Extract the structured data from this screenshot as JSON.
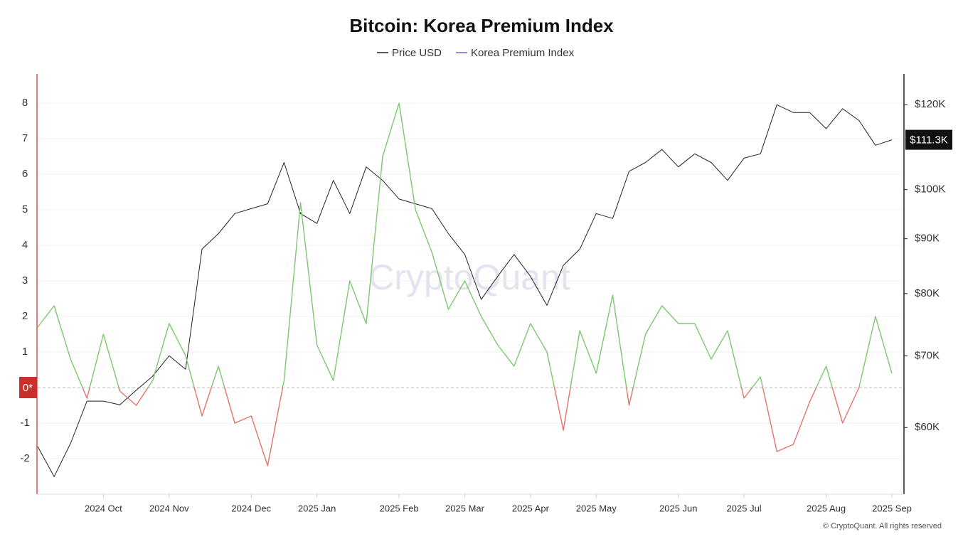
{
  "chart_data": {
    "type": "line",
    "title": "Bitcoin: Korea Premium Index",
    "watermark": "CryptoQuant",
    "footer": "© CryptoQuant. All rights reserved",
    "categories": [
      null,
      null,
      null,
      null,
      "2024 Oct",
      null,
      null,
      null,
      "2024 Nov",
      null,
      null,
      null,
      null,
      "2024 Dec",
      null,
      null,
      null,
      "2025 Jan",
      null,
      null,
      null,
      null,
      "2025 Feb",
      null,
      null,
      null,
      "2025 Mar",
      null,
      null,
      null,
      "2025 Apr",
      null,
      null,
      null,
      "2025 May",
      null,
      null,
      null,
      null,
      "2025 Jun",
      null,
      null,
      null,
      "2025 Jul",
      null,
      null,
      null,
      null,
      "2025 Aug",
      null,
      null,
      null,
      "2025 Sep"
    ],
    "series": [
      {
        "name": "Price USD",
        "color": "#222222",
        "axis": "y2",
        "y2_log_scale": true,
        "values": [
          57600,
          54000,
          58000,
          63500,
          63500,
          63000,
          65000,
          67000,
          70000,
          68000,
          88000,
          91000,
          95000,
          96000,
          97000,
          106000,
          95000,
          93000,
          102000,
          95000,
          105000,
          102000,
          98000,
          97000,
          96000,
          91000,
          87000,
          79000,
          83000,
          87000,
          83000,
          78000,
          85000,
          88000,
          95000,
          94000,
          104000,
          106000,
          109000,
          105000,
          108000,
          106000,
          102000,
          107000,
          108000,
          120000,
          118000,
          118000,
          114000,
          119000,
          116000,
          110000,
          111300
        ],
        "current_value": {
          "value": 111300,
          "label": "$111.3K"
        }
      },
      {
        "name": "Korea Premium Index",
        "color": "#6c63f0",
        "positive_color": "#7cc86f",
        "negative_color": "#e0746a",
        "values": [
          1.7,
          2.3,
          0.8,
          -0.3,
          1.5,
          -0.1,
          -0.5,
          0.2,
          1.8,
          0.9,
          -0.8,
          0.6,
          -1.0,
          -0.8,
          -2.2,
          0.2,
          5.2,
          1.2,
          0.2,
          3.0,
          1.8,
          6.5,
          8.0,
          5.0,
          3.8,
          2.2,
          3.0,
          2.0,
          1.2,
          0.6,
          1.8,
          1.0,
          -1.2,
          1.6,
          0.4,
          2.6,
          -0.5,
          1.5,
          2.3,
          1.8,
          1.8,
          0.8,
          1.6,
          -0.3,
          0.3,
          -1.8,
          -1.6,
          -0.4,
          0.6,
          -1.0,
          0.0,
          2.0,
          0.4
        ]
      }
    ],
    "ylim": [
      -3,
      8.8
    ],
    "yticks": [
      -2,
      -1,
      {
        "value": 0,
        "label": "0*"
      },
      1,
      2,
      3,
      4,
      5,
      6,
      7,
      8
    ],
    "y2lim": [
      52000,
      128000
    ],
    "y2ticks": [
      {
        "value": 60000,
        "label": "$60K"
      },
      {
        "value": 70000,
        "label": "$70K"
      },
      {
        "value": 80000,
        "label": "$80K"
      },
      {
        "value": 90000,
        "label": "$90K"
      },
      {
        "value": 100000,
        "label": "$100K"
      },
      {
        "value": 120000,
        "label": "$120K"
      }
    ],
    "grid": true
  }
}
